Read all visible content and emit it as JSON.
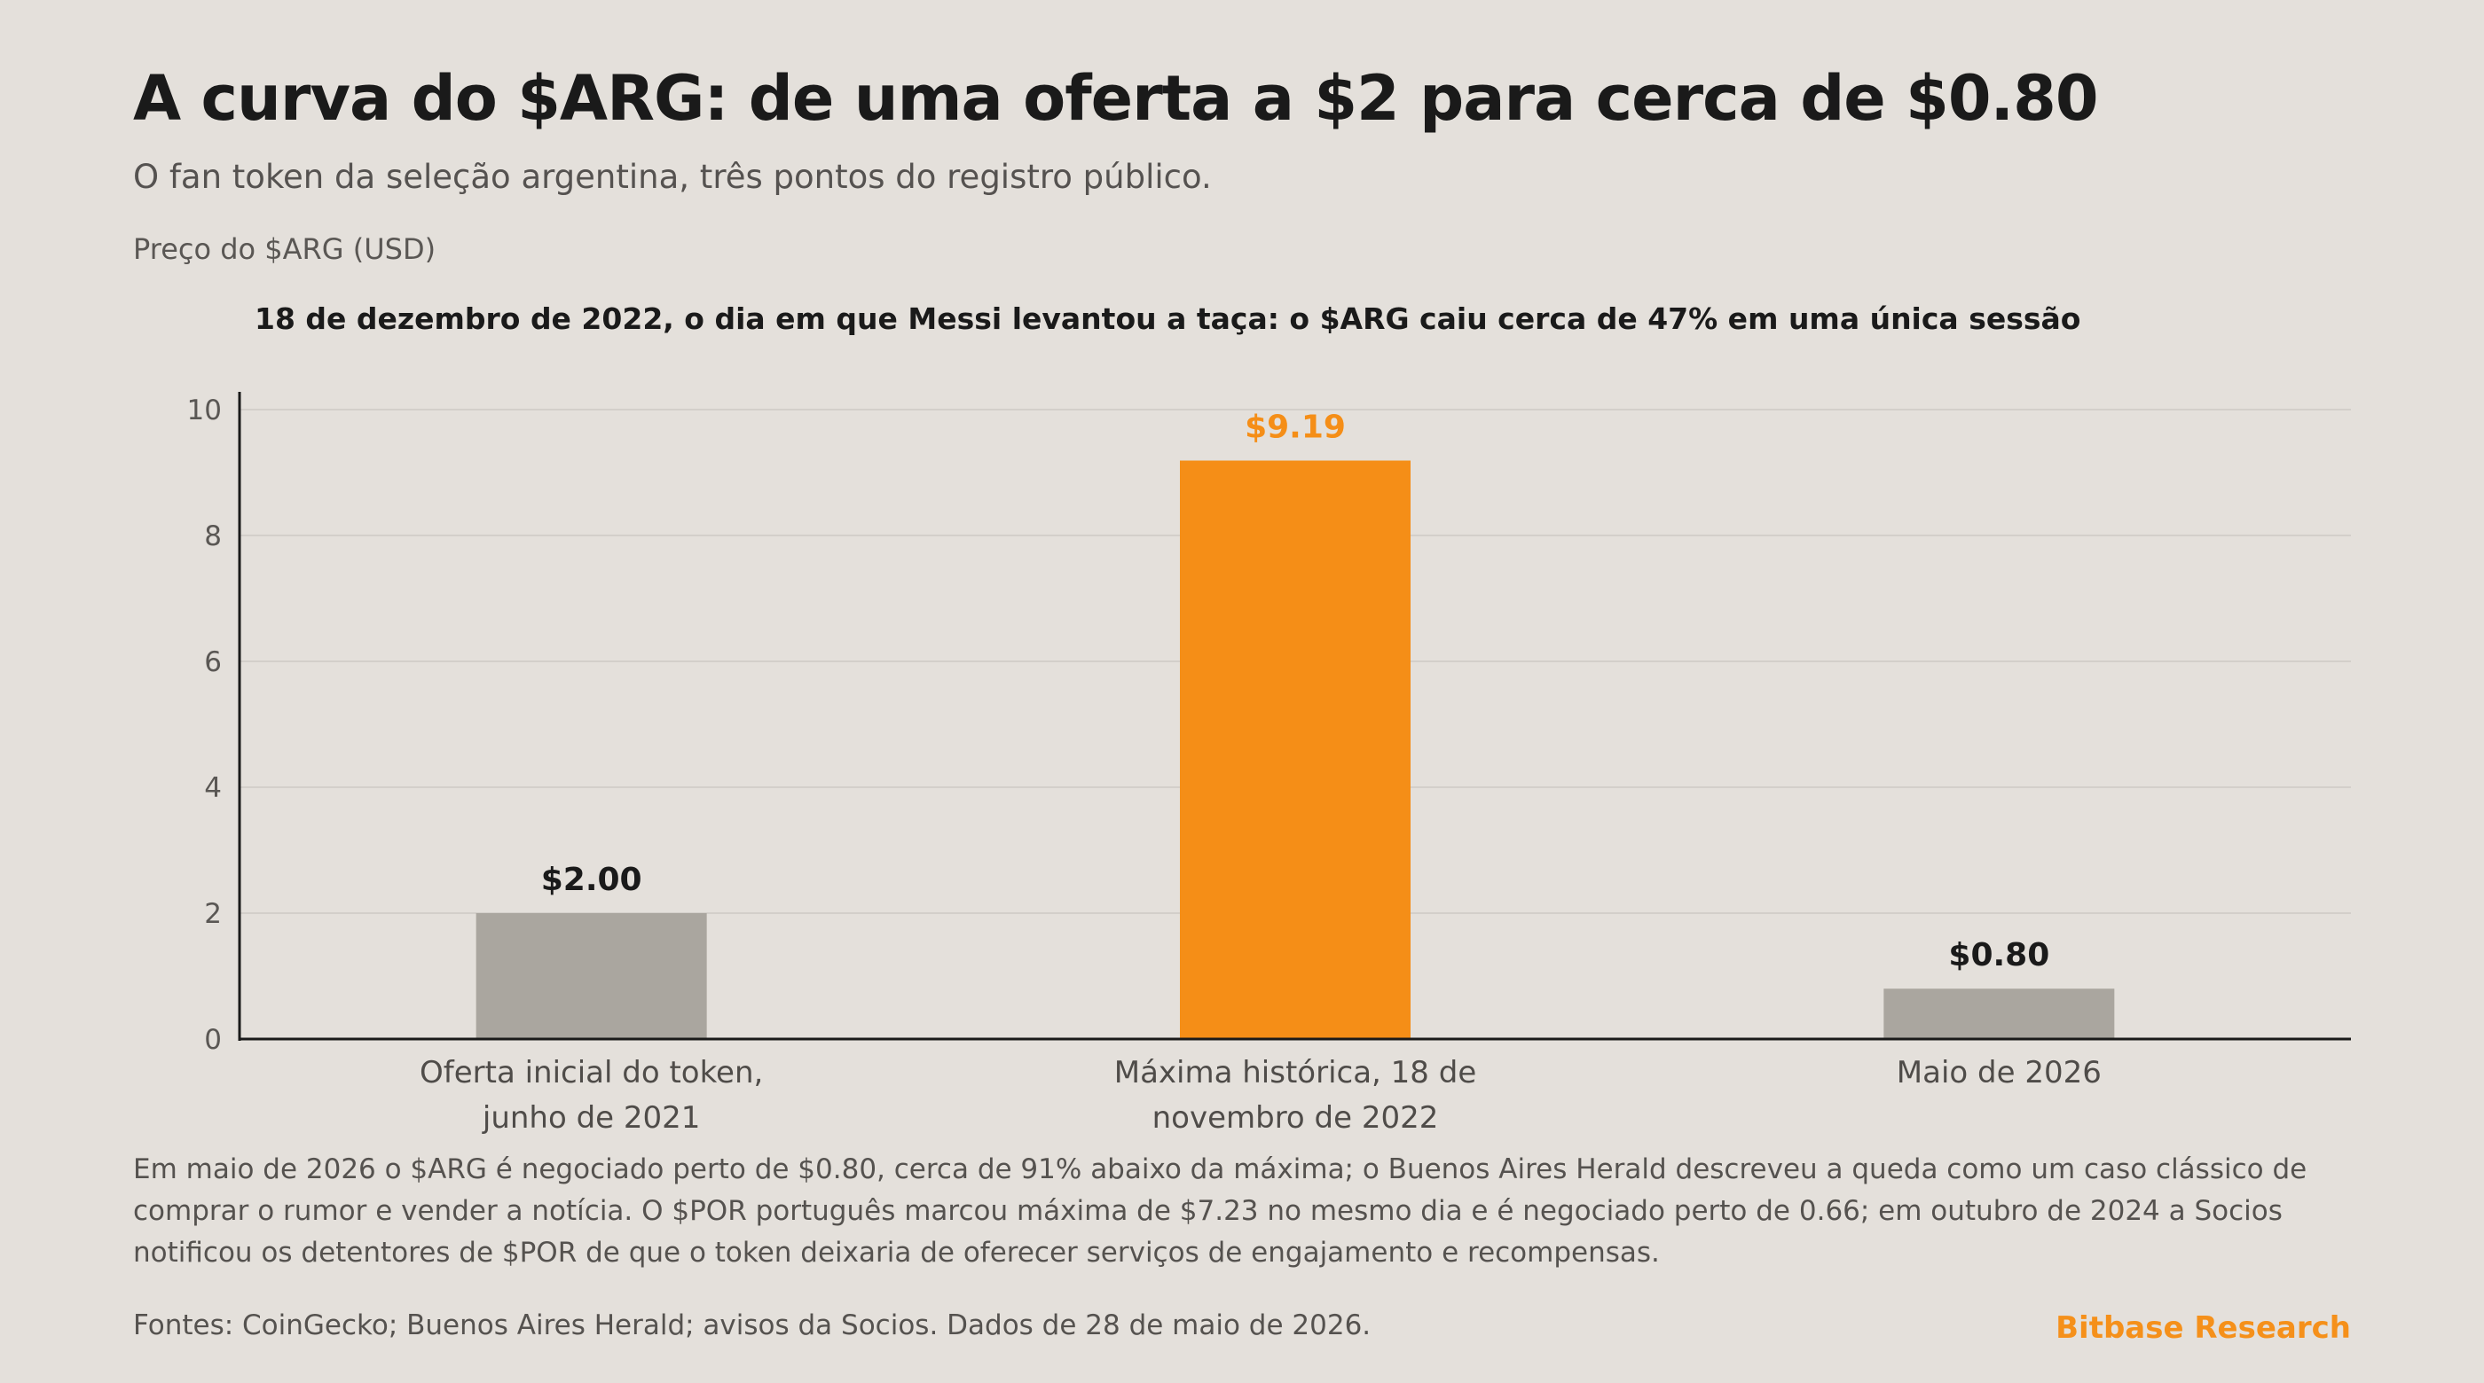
{
  "header": {
    "title": "A curva do $ARG: de uma oferta a $2 para cerca de $0.80",
    "subtitle": "O fan token da seleção argentina, três pontos do registro público.",
    "units_label": "Preço do $ARG (USD)"
  },
  "annotation": "18 de dezembro de 2022, o dia em que Messi levantou a taça: o $ARG caiu cerca de 47% em uma única sessão",
  "colors": {
    "background": "#e4e0db",
    "highlight_bar": "#f58e17",
    "muted_bar": "#aaa69f",
    "highlight_label": "#f58e17",
    "gridline": "#d3cfca",
    "brand": "#f5901a"
  },
  "chart_data": {
    "type": "bar",
    "categories": [
      [
        "Oferta inicial do token,",
        "junho de 2021"
      ],
      [
        "Máxima histórica, 18 de",
        "novembro de 2022"
      ],
      [
        "Maio de 2026"
      ]
    ],
    "values": [
      2.0,
      9.19,
      0.8
    ],
    "value_labels": [
      "$2.00",
      "$9.19",
      "$0.80"
    ],
    "highlight": [
      false,
      true,
      false
    ],
    "ylim": [
      0,
      10
    ],
    "yticks": [
      0,
      2,
      4,
      6,
      8,
      10
    ],
    "grid": true
  },
  "footnote": "Em maio de 2026 o $ARG é negociado perto de $0.80, cerca de 91% abaixo da máxima; o Buenos Aires Herald descreveu a queda como um caso clássico de comprar o rumor e vender a notícia. O $POR português marcou máxima de $7.23 no mesmo dia e é negociado perto de 0.66; em outubro de 2024 a Socios notificou os detentores de $POR de que o token deixaria de oferecer serviços de engajamento e recompensas.",
  "sources": "Fontes: CoinGecko; Buenos Aires Herald; avisos da Socios. Dados de 28 de maio de 2026.",
  "brand": "Bitbase Research"
}
